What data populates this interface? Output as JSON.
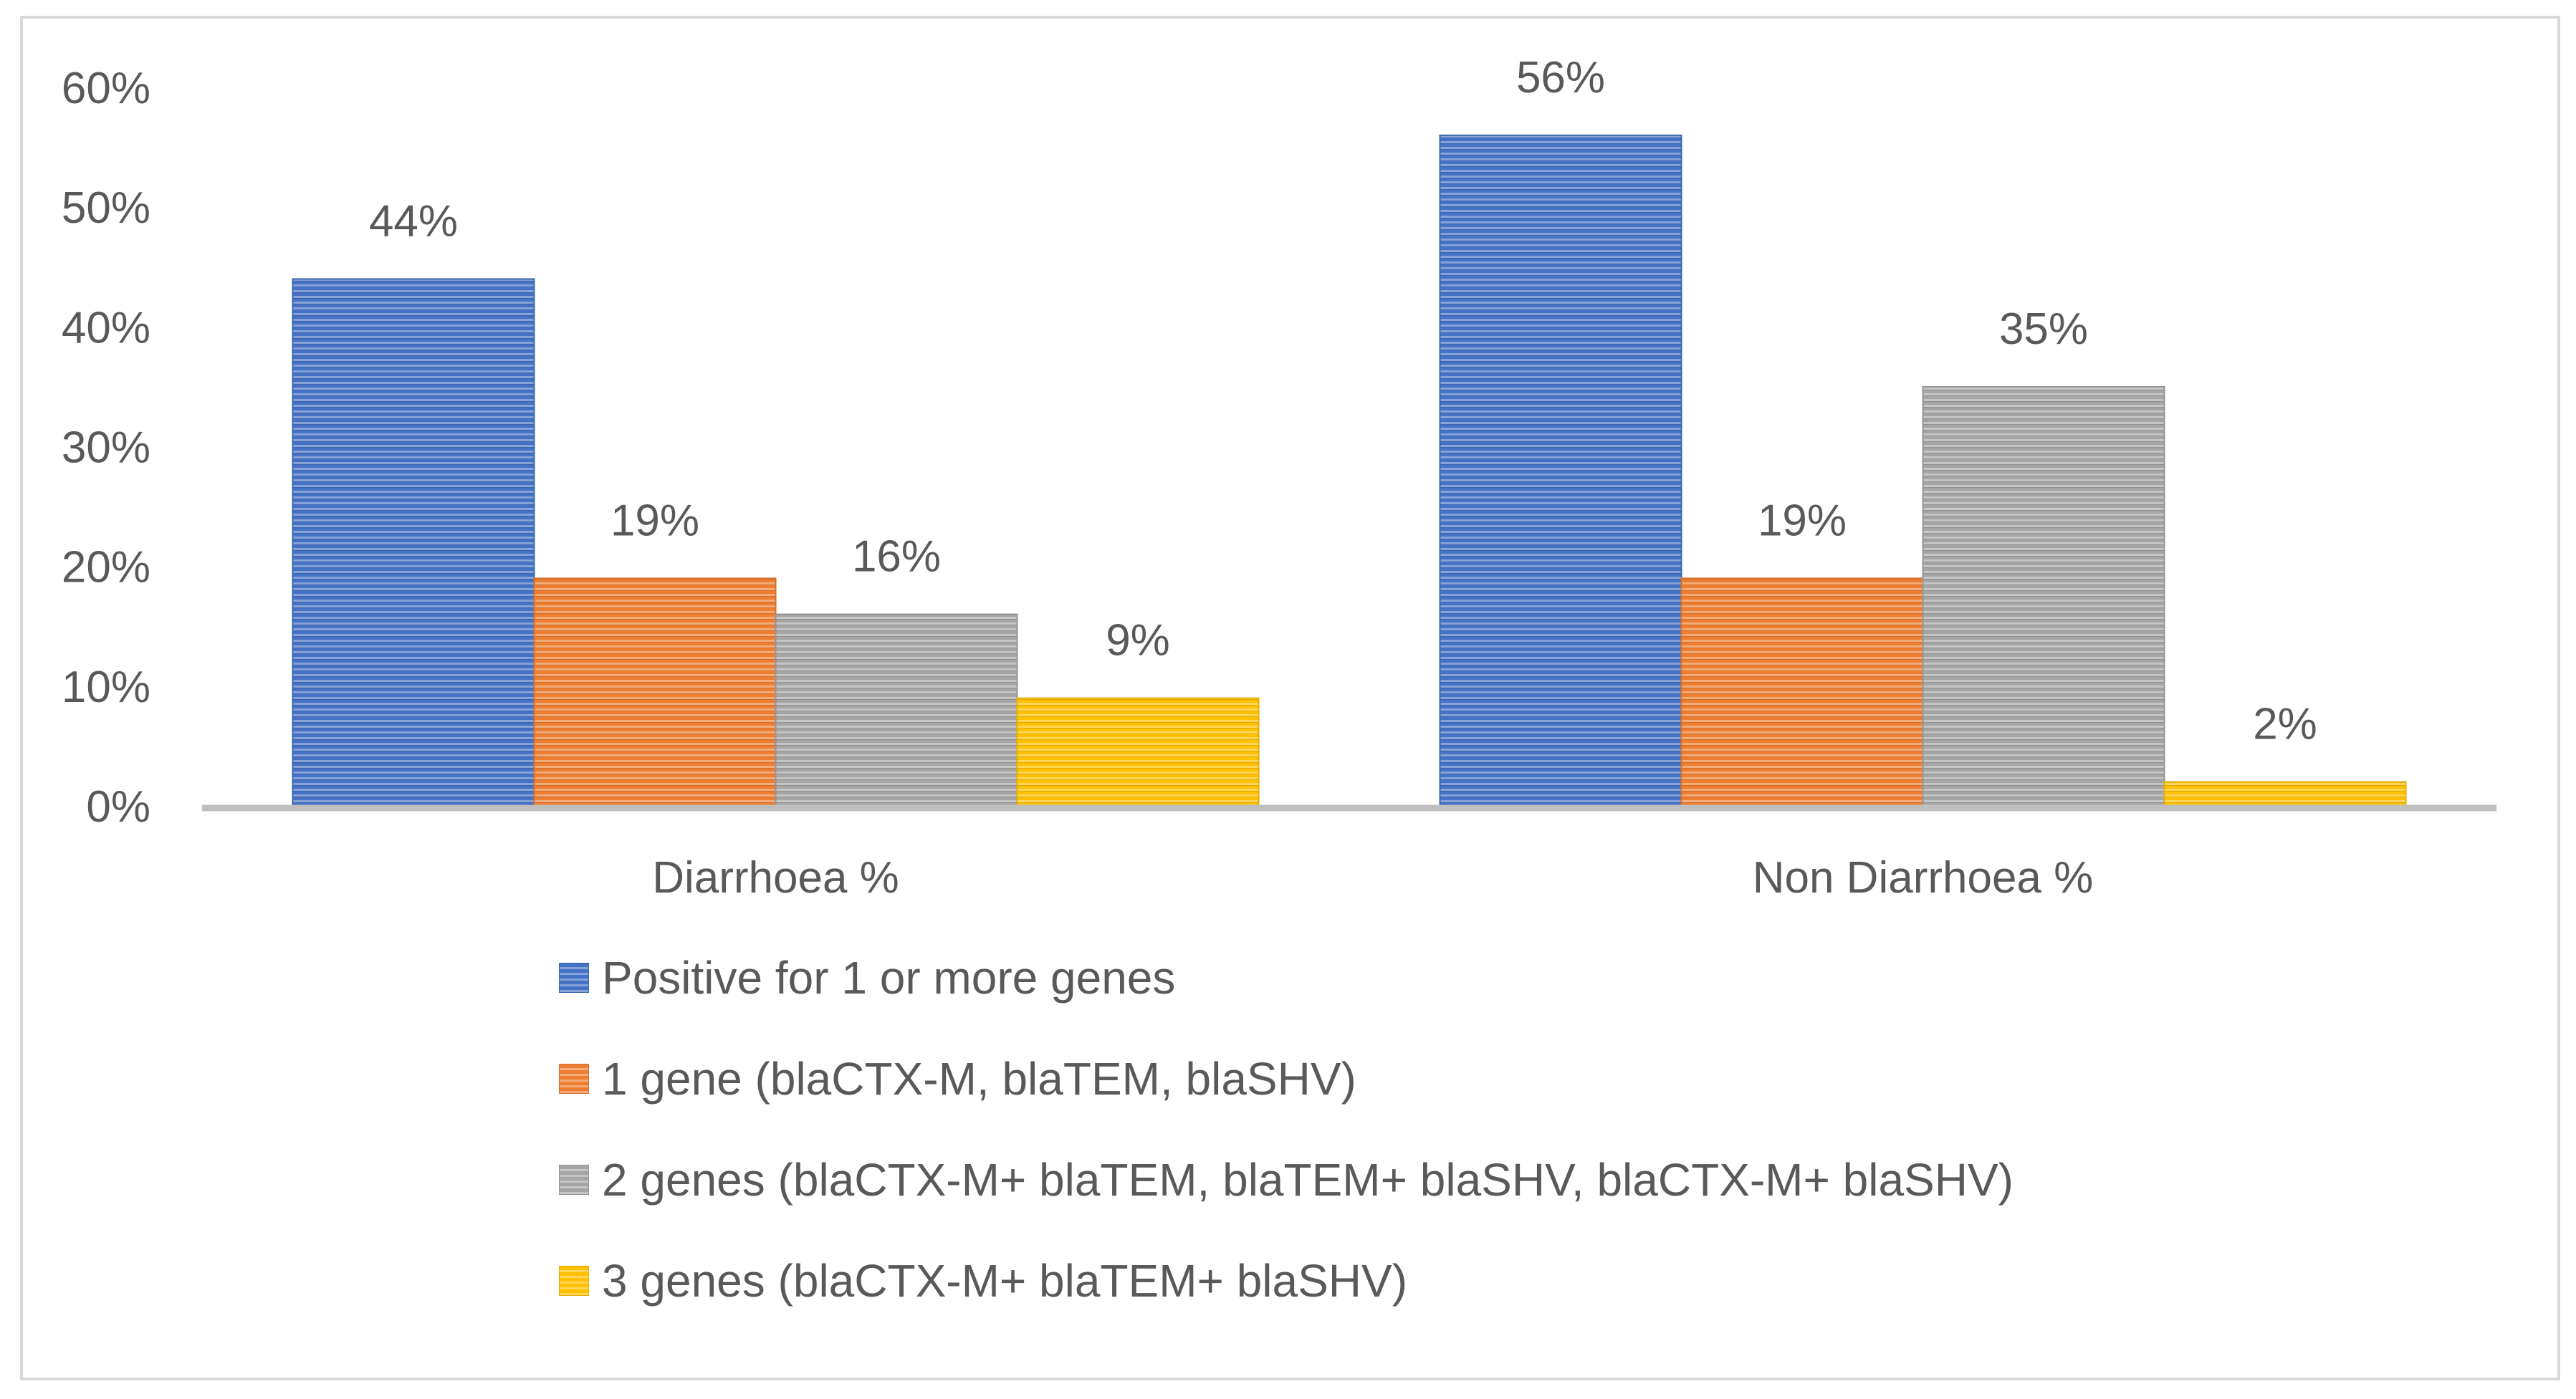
{
  "chart_data": {
    "type": "bar",
    "title": "",
    "xlabel": "",
    "ylabel": "",
    "ylim": [
      0,
      60
    ],
    "y_ticks": [
      "0%",
      "10%",
      "20%",
      "30%",
      "40%",
      "50%",
      "60%"
    ],
    "grid": false,
    "legend_position": "bottom",
    "categories": [
      "Diarrhoea %",
      "Non Diarrhoea %"
    ],
    "series": [
      {
        "name": "Positive for 1 or more genes",
        "values": [
          44,
          56
        ],
        "labels": [
          "44%",
          "56%"
        ],
        "color": "#4472c4"
      },
      {
        "name": "1 gene (blaCTX-M, blaTEM, blaSHV)",
        "values": [
          19,
          19
        ],
        "labels": [
          "19%",
          "19%"
        ],
        "color": "#ed7d31"
      },
      {
        "name": "2 genes (blaCTX-M+ blaTEM, blaTEM+ blaSHV, blaCTX-M+ blaSHV)",
        "values": [
          16,
          35
        ],
        "labels": [
          "16%",
          "35%"
        ],
        "color": "#a5a5a5"
      },
      {
        "name": "3 genes (blaCTX-M+ blaTEM+ blaSHV)",
        "values": [
          9,
          2
        ],
        "labels": [
          "9%",
          "2%"
        ],
        "color": "#ffc000"
      }
    ]
  }
}
